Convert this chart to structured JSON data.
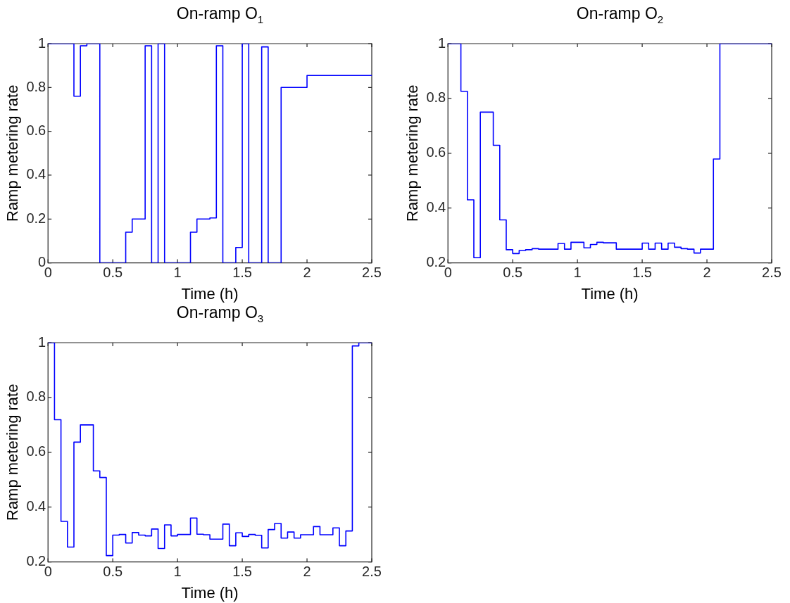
{
  "chart_data": [
    {
      "type": "step",
      "title": "On-ramp O$_{1}$",
      "xlabel": "Time (h)",
      "ylabel": "Ramp metering rate",
      "xlim": [
        0,
        2.5
      ],
      "xticks": [
        0,
        0.5,
        1,
        1.5,
        2,
        2.5
      ],
      "ylim": [
        0,
        1
      ],
      "yticks": [
        0,
        0.2,
        0.4,
        0.6,
        0.8,
        1
      ],
      "x": [
        0,
        0.2,
        0.25,
        0.3,
        0.4,
        0.6,
        0.65,
        0.75,
        0.8,
        0.85,
        0.9,
        1.1,
        1.15,
        1.25,
        1.3,
        1.35,
        1.45,
        1.5,
        1.55,
        1.65,
        1.7,
        1.8,
        2.0,
        2.5
      ],
      "series": [
        {
          "color": "#0000ff",
          "values": [
            1,
            0.76,
            0.99,
            1,
            0,
            0.14,
            0.2,
            0.99,
            0,
            1,
            0,
            0.14,
            0.2,
            0.205,
            0.99,
            0,
            0.07,
            1,
            0,
            0.985,
            0,
            0.8,
            0.855,
            0.855
          ]
        }
      ]
    },
    {
      "type": "step",
      "title": "On-ramp O$_{2}$",
      "xlabel": "Time (h)",
      "ylabel": "Ramp metering rate",
      "xlim": [
        0,
        2.5
      ],
      "xticks": [
        0,
        0.5,
        1,
        1.5,
        2,
        2.5
      ],
      "ylim": [
        0.2,
        1
      ],
      "yticks": [
        0.2,
        0.4,
        0.6,
        0.8,
        1
      ],
      "x": [
        0,
        0.1,
        0.15,
        0.2,
        0.25,
        0.35,
        0.4,
        0.45,
        0.5,
        0.55,
        0.6,
        0.65,
        0.7,
        0.85,
        0.9,
        0.95,
        1.05,
        1.1,
        1.15,
        1.2,
        1.3,
        1.5,
        1.55,
        1.6,
        1.65,
        1.7,
        1.75,
        1.8,
        1.85,
        1.9,
        1.95,
        2.05,
        2.1,
        2.5
      ],
      "series": [
        {
          "color": "#0000ff",
          "values": [
            1,
            0.826,
            0.43,
            0.219,
            0.75,
            0.629,
            0.357,
            0.248,
            0.234,
            0.245,
            0.248,
            0.252,
            0.25,
            0.271,
            0.25,
            0.275,
            0.255,
            0.267,
            0.275,
            0.273,
            0.25,
            0.272,
            0.25,
            0.272,
            0.25,
            0.272,
            0.257,
            0.252,
            0.25,
            0.236,
            0.25,
            0.579,
            1,
            1
          ]
        }
      ]
    },
    {
      "type": "step",
      "title": "On-ramp O$_{3}$",
      "xlabel": "Time (h)",
      "ylabel": "Ramp metering rate",
      "xlim": [
        0,
        2.5
      ],
      "xticks": [
        0,
        0.5,
        1,
        1.5,
        2,
        2.5
      ],
      "ylim": [
        0.2,
        1
      ],
      "yticks": [
        0.2,
        0.4,
        0.6,
        0.8,
        1
      ],
      "x": [
        0,
        0.05,
        0.1,
        0.15,
        0.2,
        0.25,
        0.35,
        0.4,
        0.45,
        0.5,
        0.55,
        0.6,
        0.65,
        0.7,
        0.75,
        0.8,
        0.85,
        0.9,
        0.95,
        1.0,
        1.1,
        1.15,
        1.2,
        1.25,
        1.35,
        1.4,
        1.45,
        1.5,
        1.55,
        1.6,
        1.65,
        1.7,
        1.75,
        1.8,
        1.85,
        1.9,
        1.95,
        2.05,
        2.1,
        2.2,
        2.25,
        2.3,
        2.35,
        2.4,
        2.5
      ],
      "series": [
        {
          "color": "#0000ff",
          "values": [
            1,
            0.719,
            0.348,
            0.254,
            0.637,
            0.7,
            0.532,
            0.508,
            0.223,
            0.298,
            0.3,
            0.269,
            0.307,
            0.298,
            0.295,
            0.32,
            0.249,
            0.335,
            0.295,
            0.3,
            0.36,
            0.301,
            0.299,
            0.283,
            0.338,
            0.259,
            0.306,
            0.293,
            0.3,
            0.297,
            0.251,
            0.318,
            0.34,
            0.287,
            0.309,
            0.287,
            0.299,
            0.329,
            0.299,
            0.324,
            0.259,
            0.313,
            0.988,
            1,
            1
          ]
        }
      ]
    }
  ]
}
